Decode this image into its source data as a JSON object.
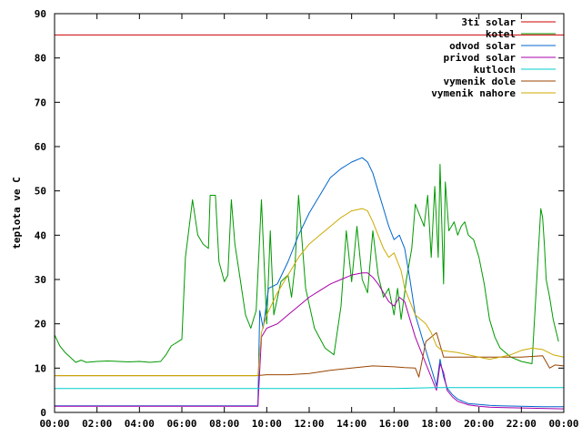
{
  "chart_data": {
    "type": "line",
    "title": "",
    "xlabel": "",
    "ylabel": "teplota ve C",
    "ylim": [
      0,
      90
    ],
    "xlim": [
      "00:00",
      "24:00"
    ],
    "grid": false,
    "legend": "top-right",
    "yticks": [
      "0",
      "10",
      "20",
      "30",
      "40",
      "50",
      "60",
      "70",
      "80",
      "90"
    ],
    "xticks": [
      "00:00",
      "02:00",
      "04:00",
      "06:00",
      "08:00",
      "10:00",
      "12:00",
      "14:00",
      "16:00",
      "18:00",
      "20:00",
      "22:00",
      "00:00"
    ],
    "series": [
      {
        "name": "3ti solar",
        "color": "#cc0000",
        "x": [
          "00:00",
          "24:00"
        ],
        "y": [
          85.2,
          85.2
        ]
      },
      {
        "name": "kotel",
        "color": "#009900",
        "x": [
          "00:00",
          "00:15",
          "00:30",
          "01:00",
          "01:15",
          "01:30",
          "02:00",
          "02:30",
          "03:00",
          "03:30",
          "04:00",
          "04:30",
          "05:00",
          "05:15",
          "05:30",
          "06:00",
          "06:10",
          "06:30",
          "06:45",
          "07:00",
          "07:15",
          "07:20",
          "07:35",
          "07:45",
          "08:00",
          "08:10",
          "08:20",
          "08:30",
          "08:45",
          "09:00",
          "09:15",
          "09:30",
          "09:45",
          "10:00",
          "10:10",
          "10:20",
          "10:40",
          "11:00",
          "11:10",
          "11:20",
          "11:30",
          "11:50",
          "12:15",
          "12:45",
          "13:10",
          "13:30",
          "13:45",
          "14:00",
          "14:15",
          "14:30",
          "14:45",
          "15:00",
          "15:15",
          "15:30",
          "15:45",
          "16:00",
          "16:10",
          "16:20",
          "16:35",
          "16:50",
          "17:00",
          "17:15",
          "17:25",
          "17:35",
          "17:45",
          "17:55",
          "18:05",
          "18:10",
          "18:20",
          "18:25",
          "18:35",
          "18:50",
          "19:00",
          "19:10",
          "19:20",
          "19:30",
          "19:45",
          "20:00",
          "20:15",
          "20:30",
          "20:45",
          "21:00",
          "21:30",
          "22:00",
          "22:30",
          "22:55",
          "23:00",
          "23:05",
          "23:10",
          "23:20",
          "23:30",
          "23:45"
        ],
        "y": [
          17.5,
          15,
          13.5,
          11.3,
          11.8,
          11.3,
          11.5,
          11.6,
          11.5,
          11.4,
          11.5,
          11.3,
          11.5,
          13,
          15,
          16.5,
          35,
          48,
          40,
          38,
          37,
          49,
          49,
          34,
          29.5,
          31,
          48,
          38,
          30,
          22,
          19,
          23,
          48,
          20,
          41,
          22,
          29.5,
          31,
          26,
          33,
          49,
          28,
          19,
          14.5,
          13,
          24,
          41,
          29.5,
          42,
          30,
          27,
          41,
          31,
          26,
          28,
          22,
          28,
          21,
          30,
          37,
          47,
          44,
          42,
          49,
          35,
          51,
          35,
          56,
          29,
          52,
          41,
          43,
          40,
          42,
          43,
          40,
          39,
          35,
          29,
          21,
          17,
          14.5,
          12.5,
          11.5,
          11,
          46,
          44,
          38,
          30,
          26,
          21,
          16
        ]
      },
      {
        "name": "odvod solar",
        "color": "#0066cc",
        "x": [
          "00:00",
          "01:00",
          "02:00",
          "03:00",
          "04:00",
          "05:00",
          "06:00",
          "07:00",
          "08:00",
          "09:00",
          "09:35",
          "09:40",
          "09:50",
          "10:05",
          "10:30",
          "11:00",
          "11:30",
          "12:00",
          "12:30",
          "13:00",
          "13:30",
          "14:00",
          "14:30",
          "14:45",
          "15:00",
          "15:15",
          "15:30",
          "15:45",
          "16:00",
          "16:15",
          "16:30",
          "16:45",
          "17:00",
          "17:30",
          "18:00",
          "18:10",
          "18:20",
          "18:30",
          "18:45",
          "19:00",
          "19:30",
          "20:00",
          "20:30",
          "21:00",
          "22:00",
          "23:00",
          "24:00"
        ],
        "y": [
          1.5,
          1.5,
          1.5,
          1.5,
          1.5,
          1.5,
          1.5,
          1.5,
          1.5,
          1.5,
          1.5,
          23,
          19,
          28,
          29,
          34,
          40,
          45,
          49,
          53,
          55,
          56.5,
          57.5,
          56.5,
          54,
          50,
          46,
          42,
          39,
          40,
          37,
          30,
          22,
          14,
          6,
          12,
          8,
          5.5,
          4,
          3,
          2,
          1.8,
          1.6,
          1.5,
          1.4,
          1.3,
          1.3
        ]
      },
      {
        "name": "privod solar",
        "color": "#aa00aa",
        "x": [
          "00:00",
          "01:00",
          "02:00",
          "03:00",
          "04:00",
          "05:00",
          "06:00",
          "07:00",
          "08:00",
          "09:00",
          "09:35",
          "09:45",
          "10:00",
          "10:30",
          "11:00",
          "11:30",
          "12:00",
          "12:30",
          "13:00",
          "13:30",
          "14:00",
          "14:30",
          "14:45",
          "15:00",
          "15:15",
          "15:30",
          "15:45",
          "16:00",
          "16:15",
          "16:30",
          "16:45",
          "17:00",
          "17:30",
          "18:00",
          "18:10",
          "18:20",
          "18:30",
          "18:45",
          "19:00",
          "19:30",
          "20:00",
          "20:30",
          "21:00",
          "22:00",
          "23:00",
          "24:00"
        ],
        "y": [
          1.4,
          1.4,
          1.4,
          1.4,
          1.4,
          1.4,
          1.4,
          1.4,
          1.4,
          1.4,
          1.4,
          17,
          19,
          20,
          22,
          24,
          26,
          27.5,
          29,
          30,
          31,
          31.5,
          31.5,
          30.5,
          29,
          27,
          25,
          24,
          26,
          25,
          21,
          17,
          11,
          5,
          11,
          9,
          5,
          3.5,
          2.5,
          1.7,
          1.4,
          1.2,
          1.1,
          1,
          0.9,
          0.8
        ]
      },
      {
        "name": "kutloch",
        "color": "#00cccc",
        "x": [
          "00:00",
          "06:00",
          "12:00",
          "16:00",
          "18:00",
          "24:00"
        ],
        "y": [
          5.4,
          5.4,
          5.4,
          5.4,
          5.6,
          5.6
        ]
      },
      {
        "name": "vymenik dole",
        "color": "#994400",
        "x": [
          "00:00",
          "04:00",
          "08:00",
          "09:30",
          "10:00",
          "11:00",
          "12:00",
          "13:00",
          "14:00",
          "15:00",
          "16:00",
          "16:30",
          "17:00",
          "17:10",
          "17:30",
          "18:00",
          "18:20",
          "19:00",
          "20:00",
          "21:00",
          "22:00",
          "23:00",
          "23:20",
          "23:35",
          "24:00"
        ],
        "y": [
          8.3,
          8.3,
          8.3,
          8.3,
          8.5,
          8.5,
          8.8,
          9.5,
          10,
          10.5,
          10.3,
          10.1,
          10,
          8,
          16,
          18,
          12.5,
          12.5,
          12.5,
          12.5,
          12.5,
          12.8,
          10,
          10.7,
          10.5
        ]
      },
      {
        "name": "vymenik nahore",
        "color": "#ccaa00",
        "x": [
          "00:00",
          "02:00",
          "04:00",
          "06:00",
          "08:00",
          "09:35",
          "09:45",
          "10:00",
          "10:30",
          "11:00",
          "11:30",
          "12:00",
          "12:30",
          "13:00",
          "13:30",
          "14:00",
          "14:30",
          "14:45",
          "15:00",
          "15:15",
          "15:30",
          "15:45",
          "16:00",
          "16:20",
          "16:30",
          "16:45",
          "17:00",
          "17:15",
          "17:30",
          "17:45",
          "18:00",
          "18:15",
          "18:30",
          "19:00",
          "19:30",
          "20:00",
          "20:30",
          "21:00",
          "21:30",
          "22:00",
          "22:30",
          "23:00",
          "23:30",
          "24:00"
        ],
        "y": [
          8.3,
          8.3,
          8.3,
          8.3,
          8.3,
          8.3,
          18,
          22,
          27,
          31,
          35,
          38,
          40,
          42,
          44,
          45.5,
          46,
          45.5,
          43,
          40,
          37,
          35,
          36,
          32,
          28,
          25,
          22,
          21,
          20,
          18,
          15,
          14,
          13.8,
          13.5,
          13,
          12.5,
          12,
          12.5,
          13,
          14,
          14.5,
          14.2,
          13,
          12.5
        ]
      }
    ]
  }
}
